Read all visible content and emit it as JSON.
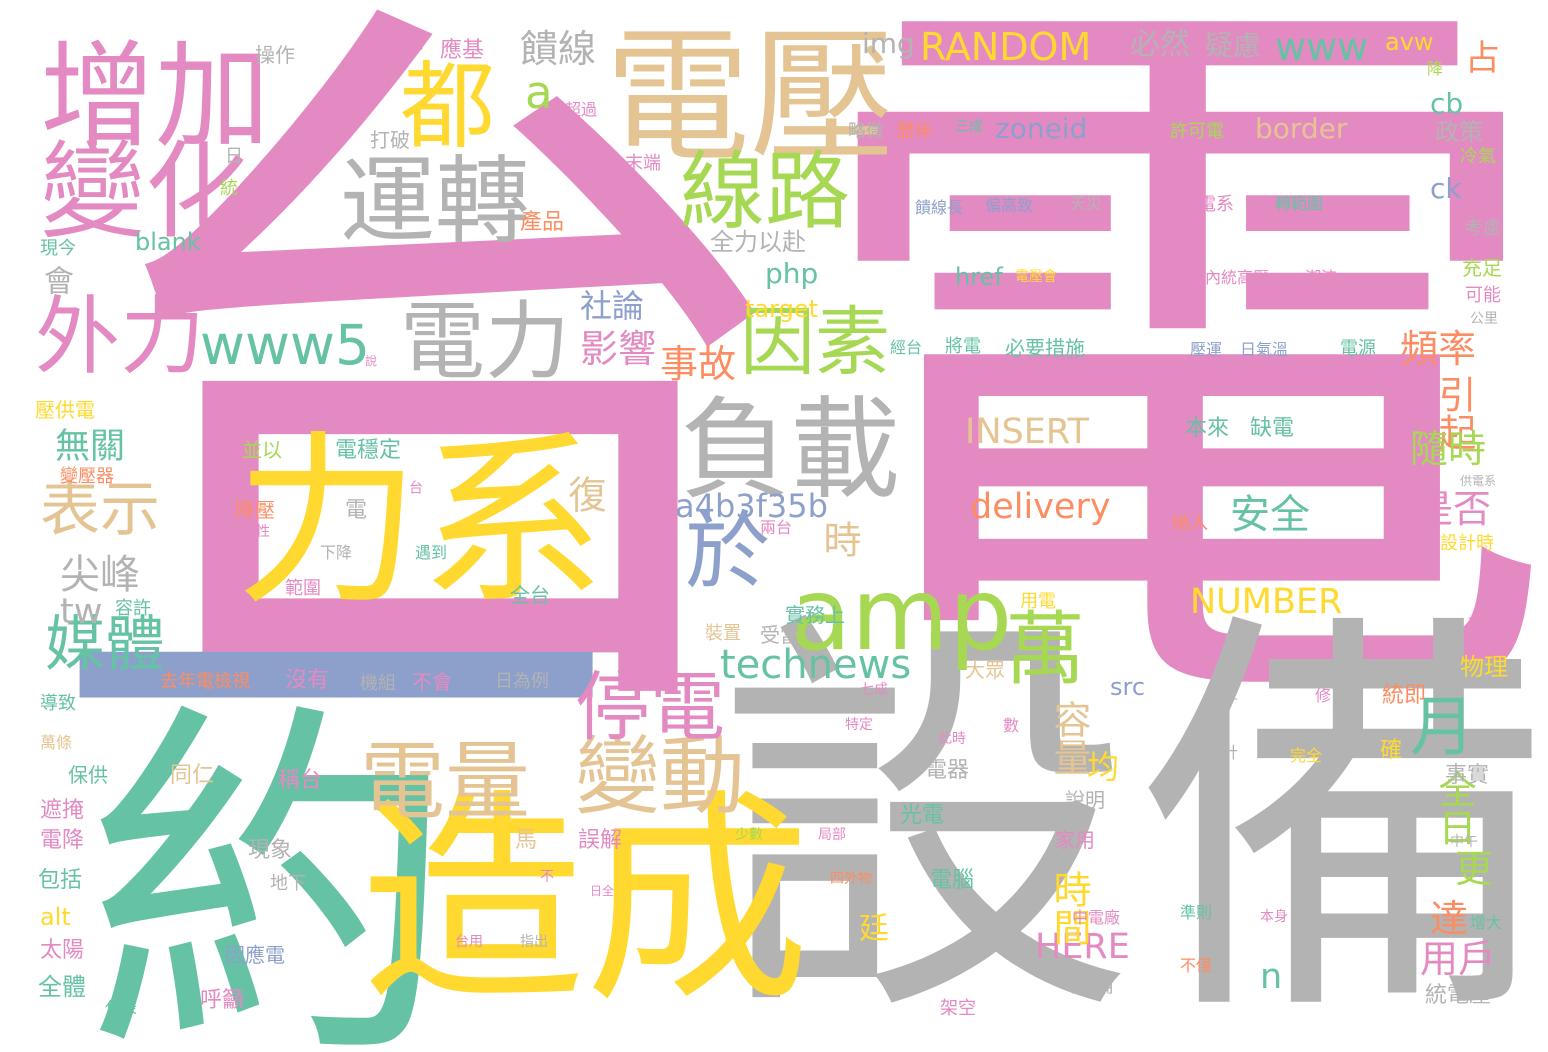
{
  "palette": {
    "pink": "#e48ac3",
    "gray": "#b3b3b3",
    "green": "#66c2a5",
    "yellow": "#ffd92f",
    "tan": "#e5c494",
    "lime": "#a6d854",
    "orange": "#fc8d62",
    "blue": "#8da0cb"
  },
  "words": {
    "w001": "台",
    "w002": "電",
    "w003": "設備",
    "w004": "約",
    "w005": "造成",
    "w006": "力系",
    "w007": "一",
    "w008": "電壓",
    "w009": "增加",
    "w010": "變化",
    "w011": "負載",
    "w012": "amp",
    "w013": "運轉",
    "w014": "線路",
    "w015": "電力",
    "w016": "都",
    "w017": "外力",
    "w018": "因素",
    "w019": "於",
    "w020": "電量",
    "w021": "變動",
    "w022": "停電",
    "w023": "萬",
    "w024": "媒體",
    "w025": "表示",
    "w026": "月",
    "w027": "www5",
    "w028": "RANDOM",
    "w029": "www",
    "w030": "technews",
    "w031": "a4b3f35b",
    "w032": "delivery",
    "w033": "INSERT",
    "w034": "NUMBER",
    "w035": "HERE",
    "w036": "a",
    "w037": "php",
    "w038": "事故",
    "w039": "頻率",
    "w040": "引起",
    "w041": "隨時",
    "w042": "是否",
    "w043": "全日",
    "w044": "更",
    "w045": "達",
    "w046": "用戶",
    "w047": "時間",
    "w048": "容量",
    "w049": "安全",
    "w050": "影響",
    "w051": "社論",
    "w052": "饋線",
    "w053": "必然",
    "w054": "疑慮",
    "w055": "占",
    "w056": "img",
    "w057": "avw",
    "w058": "cb",
    "w059": "ck",
    "w060": "zoneid",
    "w061": "border",
    "w062": "blank",
    "w063": "href",
    "w064": "target",
    "w065": "src",
    "w066": "alt",
    "w067": "tw",
    "w068": "n",
    "w069": "尖峰",
    "w070": "無關",
    "w071": "復",
    "w072": "時",
    "w073": "均",
    "w074": "會",
    "w075": "全力以赴",
    "w076": "產品",
    "w077": "打破",
    "w078": "操作",
    "w079": "應基",
    "w080": "供電",
    "w081": "超過",
    "w082": "略微",
    "w083": "歷年",
    "w084": "三成",
    "w085": "許可電",
    "w086": "電紀錄",
    "w087": "政策",
    "w088": "冷氣",
    "w089": "考慮",
    "w090": "充足",
    "w091": "可能",
    "w092": "公里",
    "w093": "末端",
    "w094": "日",
    "w095": "統",
    "w096": "現今",
    "w097": "饋線長",
    "w098": "偏高致",
    "w099": "天災",
    "w100": "配電系",
    "w101": "轉範圍",
    "w102": "內統高壓",
    "w103": "潮流",
    "w104": "電壓會",
    "w105": "經台",
    "w106": "將電",
    "w107": "必要措施",
    "w108": "壓運",
    "w109": "日氣溫",
    "w110": "電源",
    "w111": "本來",
    "w112": "缺電",
    "w113": "壓供電",
    "w114": "變壓器",
    "w115": "並以",
    "w116": "電穩定",
    "w117": "降壓",
    "w118": "偶發性",
    "w119": "下降",
    "w120": "遇到",
    "w121": "範圍",
    "w122": "不足",
    "w123": "全台",
    "w124": "實務上",
    "w125": "兩台",
    "w126": "納入",
    "w127": "設計時",
    "w128": "供電系",
    "w129": "容許",
    "w130": "去年電檢視",
    "w131": "沒有",
    "w132": "機組",
    "w133": "不會",
    "w134": "日為例",
    "w135": "用電",
    "w136": "受當",
    "w137": "裝置",
    "w138": "大眾",
    "w139": "七成",
    "w140": "導致",
    "w141": "萬條",
    "w142": "保供",
    "w143": "同仁",
    "w144": "稱台",
    "w145": "遮掩",
    "w146": "電降",
    "w147": "包括",
    "w148": "太陽",
    "w149": "全體",
    "w150": "代表",
    "w151": "呼籲",
    "w152": "因應電",
    "w153": "地下",
    "w154": "現象",
    "w155": "馬",
    "w156": "誤解",
    "w157": "光電",
    "w158": "電器",
    "w159": "電腦",
    "w160": "家用",
    "w161": "說明",
    "w162": "討論",
    "w163": "統電壓",
    "w164": "事實",
    "w165": "確",
    "w166": "統即",
    "w167": "物理",
    "w168": "故障",
    "w169": "中午",
    "w170": "增大",
    "w171": "本身",
    "w172": "準則",
    "w173": "不僅",
    "w174": "中電廠",
    "w175": "架空",
    "w176": "台用",
    "w177": "指出",
    "w178": "日全",
    "w179": "不",
    "w180": "少數",
    "w181": "局部",
    "w182": "四外物",
    "w183": "廷",
    "w184": "度合計",
    "w185": "完全",
    "w186": "修",
    "w187": "發生",
    "w188": "數",
    "w189": "特定",
    "w190": "此時",
    "w191": "說",
    "w192": "降",
    "w193": "台",
    "w194": "電"
  }
}
